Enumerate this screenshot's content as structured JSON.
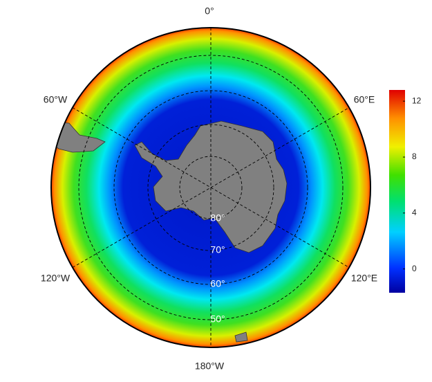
{
  "map": {
    "lon_labels": [
      "0°",
      "60°E",
      "120°E",
      "180°W",
      "120°W",
      "60°W"
    ],
    "lat_labels": [
      "80°",
      "70°",
      "60°",
      "50°"
    ],
    "colorbar": {
      "lim": [
        -1.7,
        12.8
      ],
      "ticks": [
        0,
        4,
        8,
        12
      ]
    }
  }
}
